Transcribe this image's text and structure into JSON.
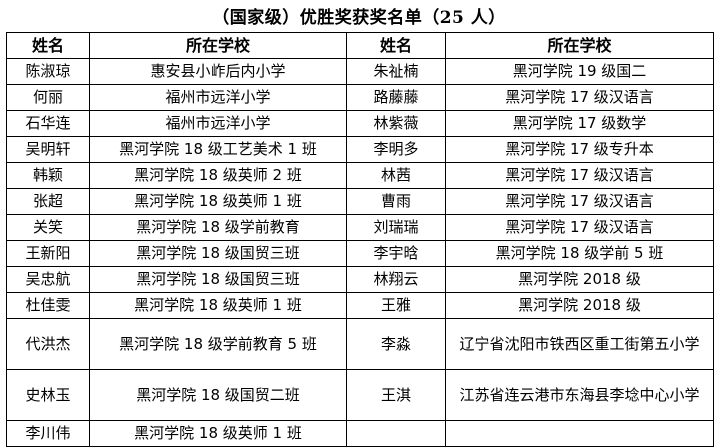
{
  "title": "（国家级）优胜奖获奖名单（25 人）",
  "headers": {
    "name": "姓名",
    "school": "所在学校"
  },
  "rows": [
    {
      "left": {
        "name": "陈淑琼",
        "school": "惠安县小岞后内小学"
      },
      "right": {
        "name": "朱祉楠",
        "school": "黑河学院 19 级国二"
      }
    },
    {
      "left": {
        "name": "何丽",
        "school": "福州市远洋小学"
      },
      "right": {
        "name": "路藤藤",
        "school": "黑河学院 17 级汉语言"
      }
    },
    {
      "left": {
        "name": "石华连",
        "school": "福州市远洋小学"
      },
      "right": {
        "name": "林紫薇",
        "school": "黑河学院 17 级数学"
      }
    },
    {
      "left": {
        "name": "吴明轩",
        "school": "黑河学院 18 级工艺美术 1 班"
      },
      "right": {
        "name": "李明多",
        "school": "黑河学院 17 级专升本"
      }
    },
    {
      "left": {
        "name": "韩颖",
        "school": "黑河学院 18 级英师 2 班"
      },
      "right": {
        "name": "林茜",
        "school": "黑河学院 17 级汉语言"
      }
    },
    {
      "left": {
        "name": "张超",
        "school": "黑河学院 18 级英师 1 班"
      },
      "right": {
        "name": "曹雨",
        "school": "黑河学院 17 级汉语言"
      }
    },
    {
      "left": {
        "name": "关笑",
        "school": "黑河学院 18 级学前教育"
      },
      "right": {
        "name": "刘瑞瑞",
        "school": "黑河学院 17 级汉语言"
      }
    },
    {
      "left": {
        "name": "王新阳",
        "school": "黑河学院 18 级国贸三班"
      },
      "right": {
        "name": "李宇晗",
        "school": "黑河学院 18 级学前 5 班"
      }
    },
    {
      "left": {
        "name": "吴忠航",
        "school": "黑河学院 18 级国贸三班"
      },
      "right": {
        "name": "林翔云",
        "school": "黑河学院 2018 级"
      }
    },
    {
      "left": {
        "name": "杜佳雯",
        "school": "黑河学院 18 级英师 1 班"
      },
      "right": {
        "name": "王雅",
        "school": "黑河学院 2018 级"
      }
    },
    {
      "left": {
        "name": "代洪杰",
        "school": "黑河学院 18 级学前教育 5 班"
      },
      "right": {
        "name": "李淼",
        "school": "辽宁省沈阳市铁西区重工街第五小学"
      }
    },
    {
      "left": {
        "name": "史林玉",
        "school": "黑河学院 18 级国贸二班"
      },
      "right": {
        "name": "王淇",
        "school": "江苏省连云港市东海县李埝中心小学"
      }
    },
    {
      "left": {
        "name": "李川伟",
        "school": "黑河学院 18 级英师 1 班"
      },
      "right": {
        "name": "",
        "school": ""
      }
    }
  ]
}
